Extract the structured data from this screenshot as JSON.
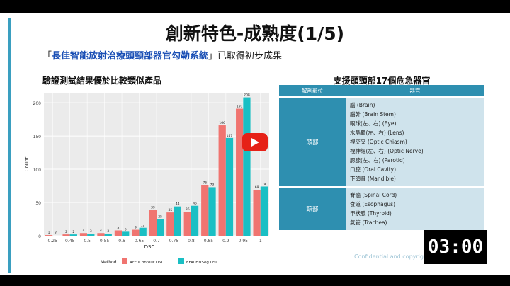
{
  "slide": {
    "title": "創新特色-成熟度(1/5)",
    "subtitle_open": "「",
    "subtitle_highlight": "長佳智能放射治療頭頸部器官勾勒系統",
    "subtitle_rest": "」已取得初步成果",
    "confidential": "Confidential and copyrights reserved"
  },
  "chart_heading": "驗證測試結果優於比較類似產品",
  "chart_data": {
    "type": "bar",
    "categories": [
      "0.25",
      "0.45",
      "0.5",
      "0.55",
      "0.6",
      "0.65",
      "0.7",
      "0.75",
      "0.8",
      "0.85",
      "0.9",
      "0.95",
      "1"
    ],
    "series": [
      {
        "name": "AccuContour DSC",
        "values": [
          1,
          2,
          4,
          4,
          8,
          9,
          39,
          35,
          36,
          76,
          166,
          191,
          69
        ],
        "color": "#f07470"
      },
      {
        "name": "EFAI HNSeg DSC",
        "values": [
          0,
          2,
          3,
          3,
          6,
          12,
          25,
          44,
          45,
          73,
          147,
          208,
          74
        ],
        "color": "#1abfc4"
      }
    ],
    "xlabel": "DSC",
    "ylabel": "Count",
    "yticks": [
      0,
      50,
      100,
      150,
      200
    ],
    "ylim": [
      0,
      215
    ],
    "legend_title": "Method",
    "legend_position": "bottom",
    "grid": true
  },
  "organ_table": {
    "title": "支援頭頸部17個危急器官",
    "headers": [
      "解剖部位",
      "器官"
    ],
    "rows": [
      {
        "region": "頭部",
        "organs": [
          "腦 (Brain)",
          "腦幹 (Brain Stem)",
          "眼球(左、右) (Eye)",
          "水晶體(左、右) (Lens)",
          "視交叉 (Optic Chiasm)",
          "視神經(左、右) (Optic Nerve)",
          "腮腺(左、右) (Parotid)",
          "口腔 (Oral Cavity)",
          "下頜骨 (Mandible)"
        ]
      },
      {
        "region": "頸部",
        "organs": [
          "脊髓 (Spinal Cord)",
          "食道 (Esophagus)",
          "甲狀腺 (Thyroid)",
          "氣管 (Trachea)"
        ]
      }
    ]
  },
  "video": {
    "timer": "03:00",
    "play_icon": "play-icon"
  }
}
